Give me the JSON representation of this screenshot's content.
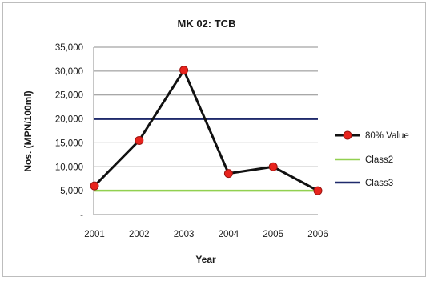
{
  "chart_data": {
    "type": "line",
    "title": "MK 02: TCB",
    "xlabel": "Year",
    "ylabel": "Nos. (MPN/100ml)",
    "categories": [
      "2001",
      "2002",
      "2003",
      "2004",
      "2005",
      "2006"
    ],
    "ylim": [
      0,
      35000
    ],
    "y_ticks": [
      0,
      5000,
      10000,
      15000,
      20000,
      25000,
      30000,
      35000
    ],
    "y_tick_labels": [
      "-",
      "5,000",
      "10,000",
      "15,000",
      "20,000",
      "25,000",
      "30,000",
      "35,000"
    ],
    "grid": true,
    "legend_position": "right",
    "series": [
      {
        "name": "80% Value",
        "values": [
          6000,
          15500,
          30200,
          8600,
          10000,
          5000
        ],
        "color": "#111111",
        "marker_color": "#e8231d"
      },
      {
        "name": "Class2",
        "values": [
          5000,
          5000,
          5000,
          5000,
          5000,
          5000
        ],
        "color": "#92d050"
      },
      {
        "name": "Class3",
        "values": [
          20000,
          20000,
          20000,
          20000,
          20000,
          20000
        ],
        "color": "#1f2a6b"
      }
    ]
  }
}
